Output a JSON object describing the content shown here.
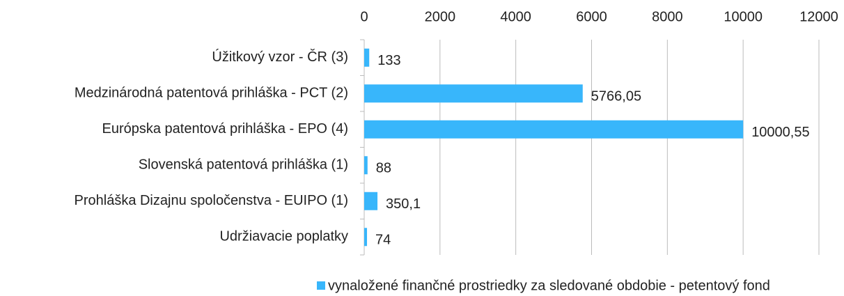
{
  "chart_data": {
    "type": "bar",
    "orientation": "horizontal",
    "categories": [
      "Úžitkový vzor - ČR (3)",
      "Medzinárodná patentová prihláška - PCT (2)",
      "Európska patentová prihláška - EPO (4)",
      "Slovenská patentová prihláška (1)",
      "Prohláška Dizajnu spoločenstva - EUIPO (1)",
      "Udržiavacie poplatky"
    ],
    "series": [
      {
        "name": "vynaložené finančné prostriedky za sledované obdobie - petentový fond",
        "color": "#38b6fb",
        "values": [
          133,
          5766.05,
          10000.55,
          88,
          350.1,
          74
        ],
        "value_labels": [
          "133",
          "5766,05",
          "10000,55",
          "88",
          "350,1",
          "74"
        ]
      }
    ],
    "xlim": [
      0,
      12000
    ],
    "xticks": [
      0,
      2000,
      4000,
      6000,
      8000,
      10000,
      12000
    ],
    "grid": true,
    "legend": "bottom"
  }
}
